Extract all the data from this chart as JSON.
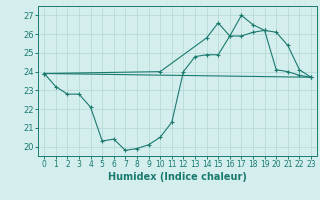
{
  "title": "",
  "xlabel": "Humidex (Indice chaleur)",
  "ylabel": "",
  "xlim": [
    -0.5,
    23.5
  ],
  "ylim": [
    19.5,
    27.5
  ],
  "yticks": [
    20,
    21,
    22,
    23,
    24,
    25,
    26,
    27
  ],
  "xticks": [
    0,
    1,
    2,
    3,
    4,
    5,
    6,
    7,
    8,
    9,
    10,
    11,
    12,
    13,
    14,
    15,
    16,
    17,
    18,
    19,
    20,
    21,
    22,
    23
  ],
  "background_color": "#d4eeed",
  "grid_color": "#b8dbd8",
  "line_color": "#1a7a6e",
  "line1_x": [
    0,
    1,
    2,
    3,
    4,
    5,
    6,
    7,
    8,
    9,
    10,
    11,
    12,
    13,
    14,
    15,
    16,
    17,
    18,
    19,
    20,
    21,
    22,
    23
  ],
  "line1_y": [
    23.9,
    23.2,
    22.8,
    22.8,
    22.1,
    20.3,
    20.4,
    19.8,
    19.9,
    20.1,
    20.5,
    21.3,
    24.0,
    24.8,
    24.9,
    24.9,
    25.9,
    25.9,
    26.1,
    26.2,
    24.1,
    24.0,
    23.8,
    23.7
  ],
  "line2_x": [
    0,
    23
  ],
  "line2_y": [
    23.9,
    23.7
  ],
  "line3_x": [
    0,
    10,
    14,
    15,
    16,
    17,
    18,
    19,
    20,
    21,
    22,
    23
  ],
  "line3_y": [
    23.9,
    24.0,
    25.8,
    26.6,
    25.9,
    27.0,
    26.5,
    26.2,
    26.1,
    25.4,
    24.1,
    23.7
  ],
  "tick_fontsize": 6,
  "xlabel_fontsize": 7
}
